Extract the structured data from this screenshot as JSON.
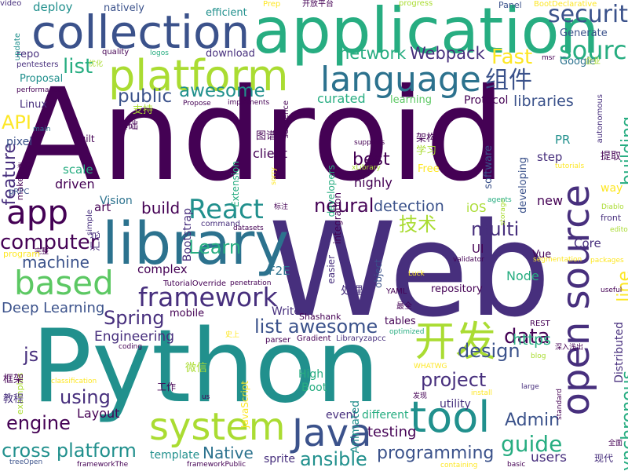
{
  "palette": {
    "dark_purple": "#440154",
    "indigo": "#472f7d",
    "blue": "#3b528b",
    "steel": "#2c728e",
    "teal": "#21908d",
    "green": "#27ad81",
    "lime": "#5cc863",
    "yellow_green": "#aadc32",
    "yellow": "#fde725"
  },
  "words": [
    {
      "text": "Android",
      "color": "#440154"
    },
    {
      "text": "Web",
      "color": "#472f7d"
    },
    {
      "text": "Python",
      "color": "#21908d"
    },
    {
      "text": "application",
      "color": "#27ad81"
    },
    {
      "text": "collection",
      "color": "#3b528b"
    },
    {
      "text": "platform",
      "color": "#aadc32"
    },
    {
      "text": "library",
      "color": "#2c728e"
    },
    {
      "text": "language",
      "color": "#2c728e"
    },
    {
      "text": "open source",
      "color": "#472f7d"
    },
    {
      "text": "system",
      "color": "#aadc32"
    },
    {
      "text": "tool",
      "color": "#21908d"
    },
    {
      "text": "Java",
      "color": "#3b528b"
    },
    {
      "text": "开发",
      "color": "#aadc32"
    },
    {
      "text": "app",
      "color": "#440154"
    },
    {
      "text": "React",
      "color": "#21908d"
    },
    {
      "text": "based",
      "color": "#5cc863"
    },
    {
      "text": "framework",
      "color": "#472f7d"
    },
    {
      "text": "source",
      "color": "#27ad81"
    },
    {
      "text": "security",
      "color": "#3b528b"
    },
    {
      "text": "组件",
      "color": "#3b528b"
    },
    {
      "text": "Fast",
      "color": "#fde725"
    },
    {
      "text": "list",
      "color": "#27ad81"
    },
    {
      "text": "awesome",
      "color": "#21908d"
    },
    {
      "text": "public",
      "color": "#3b528b"
    },
    {
      "text": "network",
      "color": "#27ad81"
    },
    {
      "text": "Webpack",
      "color": "#472f7d"
    },
    {
      "text": "API",
      "color": "#fde725"
    },
    {
      "text": "feature",
      "color": "#472f7d"
    },
    {
      "text": "computer",
      "color": "#440154"
    },
    {
      "text": "machine",
      "color": "#3b528b"
    },
    {
      "text": "Learn",
      "color": "#27ad81"
    },
    {
      "text": "Spring",
      "color": "#472f7d"
    },
    {
      "text": "neural",
      "color": "#440154"
    },
    {
      "text": "detection",
      "color": "#3b528b"
    },
    {
      "text": "技术",
      "color": "#aadc32"
    },
    {
      "text": "multi",
      "color": "#472f7d"
    },
    {
      "text": "build",
      "color": "#440154"
    },
    {
      "text": "building",
      "color": "#27ad81"
    },
    {
      "text": "libraries",
      "color": "#3b528b"
    },
    {
      "text": "line",
      "color": "#fde725"
    },
    {
      "text": "list awesome",
      "color": "#3b528b"
    },
    {
      "text": "data",
      "color": "#440154"
    },
    {
      "text": "project",
      "color": "#472f7d"
    },
    {
      "text": "design",
      "color": "#3b528b"
    },
    {
      "text": "engine",
      "color": "#440154"
    },
    {
      "text": "guide",
      "color": "#27ad81"
    },
    {
      "text": "using",
      "color": "#472f7d"
    },
    {
      "text": "Admin",
      "color": "#3b528b"
    },
    {
      "text": "https",
      "color": "#27ad81"
    },
    {
      "text": "asynchronous",
      "color": "#27ad81"
    },
    {
      "text": "cross platform",
      "color": "#21908d"
    },
    {
      "text": "programming",
      "color": "#3b528b"
    },
    {
      "text": "Native",
      "color": "#2c728e"
    },
    {
      "text": "ansible",
      "color": "#21908d"
    },
    {
      "text": "js",
      "color": "#472f7d"
    },
    {
      "text": "Deep Learning",
      "color": "#3b528b"
    },
    {
      "text": "Engineering",
      "color": "#472f7d"
    },
    {
      "text": "testing",
      "color": "#440154"
    },
    {
      "text": "users",
      "color": "#472f7d"
    },
    {
      "text": "Layout",
      "color": "#440154"
    },
    {
      "text": "best",
      "color": "#440154"
    },
    {
      "text": "highly",
      "color": "#440154"
    },
    {
      "text": "client",
      "color": "#440154"
    },
    {
      "text": "curated",
      "color": "#27ad81"
    },
    {
      "text": "learning",
      "color": "#5cc863"
    },
    {
      "text": "Protocol",
      "color": "#440154"
    },
    {
      "text": "Bootstrap",
      "color": "#472f7d"
    },
    {
      "text": "pixel",
      "color": "#3b528b"
    },
    {
      "text": "scale",
      "color": "#27ad81"
    },
    {
      "text": "driven",
      "color": "#440154"
    },
    {
      "text": "video",
      "color": "#472f7d"
    },
    {
      "text": "art",
      "color": "#440154"
    },
    {
      "text": "Vision",
      "color": "#2c728e"
    },
    {
      "text": "complex",
      "color": "#440154"
    },
    {
      "text": "F2E",
      "color": "#2c728e"
    },
    {
      "text": "Node",
      "color": "#27ad81"
    },
    {
      "text": "iOS",
      "color": "#aadc32"
    },
    {
      "text": "UI",
      "color": "#440154"
    },
    {
      "text": "Vue",
      "color": "#440154"
    },
    {
      "text": "new",
      "color": "#440154"
    },
    {
      "text": "Core",
      "color": "#472f7d"
    },
    {
      "text": "way",
      "color": "#fde725"
    },
    {
      "text": "step",
      "color": "#472f7d"
    },
    {
      "text": "PR",
      "color": "#21908d"
    },
    {
      "text": "Generate",
      "color": "#3b528b"
    },
    {
      "text": "deploy",
      "color": "#21908d"
    },
    {
      "text": "natively",
      "color": "#3b528b"
    },
    {
      "text": "efficient",
      "color": "#21908d"
    },
    {
      "text": "repo",
      "color": "#472f7d"
    },
    {
      "text": "download",
      "color": "#472f7d"
    },
    {
      "text": "Proposal",
      "color": "#21908d"
    },
    {
      "text": "Linux",
      "color": "#472f7d"
    },
    {
      "text": "Google",
      "color": "#2c728e"
    },
    {
      "text": "mobile",
      "color": "#440154"
    },
    {
      "text": "Write",
      "color": "#472f7d"
    },
    {
      "text": "Shashank",
      "color": "#440154"
    },
    {
      "text": "repository",
      "color": "#440154"
    },
    {
      "text": "High",
      "color": "#27ad81"
    },
    {
      "text": "Boot",
      "color": "#27ad81"
    },
    {
      "text": "event",
      "color": "#472f7d"
    },
    {
      "text": "different",
      "color": "#27ad81"
    },
    {
      "text": "utility",
      "color": "#472f7d"
    },
    {
      "text": "template",
      "color": "#21908d"
    },
    {
      "text": "sprite",
      "color": "#472f7d"
    },
    {
      "text": "tables",
      "color": "#440154"
    },
    {
      "text": "examples",
      "color": "#aadc32"
    },
    {
      "text": "框架",
      "color": "#440154"
    },
    {
      "text": "教程",
      "color": "#472f7d"
    },
    {
      "text": "工作",
      "color": "#440154"
    },
    {
      "text": "微信",
      "color": "#aadc32"
    },
    {
      "text": "JavaScript",
      "color": "#fde725"
    },
    {
      "text": "Animated",
      "color": "#21908d"
    },
    {
      "text": "software",
      "color": "#3b528b"
    },
    {
      "text": "developing",
      "color": "#3b528b"
    },
    {
      "text": "developers",
      "color": "#27ad81"
    },
    {
      "text": "integration",
      "color": "#440154"
    },
    {
      "text": "easier",
      "color": "#472f7d"
    },
    {
      "text": "object",
      "color": "#3b528b"
    },
    {
      "text": "Distributed",
      "color": "#472f7d"
    },
    {
      "text": "Extension",
      "color": "#27ad81"
    },
    {
      "text": "架构",
      "color": "#440154"
    },
    {
      "text": "学习",
      "color": "#aadc32"
    },
    {
      "text": "Free",
      "color": "#fde725"
    },
    {
      "text": "提取",
      "color": "#440154"
    },
    {
      "text": "图谱",
      "color": "#440154"
    },
    {
      "text": "处理",
      "color": "#472f7d"
    },
    {
      "text": "汇总",
      "color": "#472f7d"
    },
    {
      "text": "基础",
      "color": "#440154"
    },
    {
      "text": "支持",
      "color": "#aadc32"
    },
    {
      "text": "make",
      "color": "#440154"
    },
    {
      "text": "built",
      "color": "#440154"
    },
    {
      "text": "simple",
      "color": "#472f7d"
    },
    {
      "text": "现代",
      "color": "#472f7d"
    },
    {
      "text": "update",
      "color": "#21908d"
    },
    {
      "text": "quality",
      "color": "#440154"
    },
    {
      "text": "Prep",
      "color": "#fde725"
    },
    {
      "text": "开放平台",
      "color": "#440154"
    },
    {
      "text": "progress",
      "color": "#aadc32"
    },
    {
      "text": "Panel",
      "color": "#3b528b"
    },
    {
      "text": "BootDeclarative",
      "color": "#fde725"
    },
    {
      "text": "msr",
      "color": "#440154"
    },
    {
      "text": "企业",
      "color": "#aadc32"
    },
    {
      "text": "pentesters",
      "color": "#472f7d"
    },
    {
      "text": "优化",
      "color": "#aadc32"
    },
    {
      "text": "logos",
      "color": "#27ad81"
    },
    {
      "text": "performance",
      "color": "#440154"
    },
    {
      "text": "Propose",
      "color": "#440154"
    },
    {
      "text": "implements",
      "color": "#440154"
    },
    {
      "text": "sequence",
      "color": "#440154"
    },
    {
      "text": "main",
      "color": "#2c728e"
    },
    {
      "text": "supports",
      "color": "#440154"
    },
    {
      "text": "autonomous",
      "color": "#472f7d"
    },
    {
      "text": "Diablo",
      "color": "#aadc32"
    },
    {
      "text": "editor",
      "color": "#aadc32"
    },
    {
      "text": "front",
      "color": "#472f7d"
    },
    {
      "text": "tutorials",
      "color": "#fde725"
    },
    {
      "text": "看板",
      "color": "#440154"
    },
    {
      "text": "xLibrary",
      "color": "#aadc32"
    },
    {
      "text": "sorry",
      "color": "#fde725"
    },
    {
      "text": "gRPC",
      "color": "#3b528b"
    },
    {
      "text": "标注",
      "color": "#440154"
    },
    {
      "text": "storage",
      "color": "#aadc32"
    },
    {
      "text": "agents",
      "color": "#27ad81"
    },
    {
      "text": "完整",
      "color": "#440154"
    },
    {
      "text": "command",
      "color": "#472f7d"
    },
    {
      "text": "datasets",
      "color": "#440154"
    },
    {
      "text": "validator",
      "color": "#440154"
    },
    {
      "text": "segmentation",
      "color": "#fde725"
    },
    {
      "text": "packages",
      "color": "#fde725"
    },
    {
      "text": "program",
      "color": "#fde725"
    },
    {
      "text": "TutorialOverride",
      "color": "#440154"
    },
    {
      "text": "penetration",
      "color": "#440154"
    },
    {
      "text": "useful",
      "color": "#440154"
    },
    {
      "text": "Luck",
      "color": "#fde725"
    },
    {
      "text": "YAML",
      "color": "#440154"
    },
    {
      "text": "最全",
      "color": "#440154"
    },
    {
      "text": "optimized",
      "color": "#27ad81"
    },
    {
      "text": "REST",
      "color": "#440154"
    },
    {
      "text": "史上",
      "color": "#fde725"
    },
    {
      "text": "coding",
      "color": "#440154"
    },
    {
      "text": "parser",
      "color": "#440154"
    },
    {
      "text": "Gradient",
      "color": "#440154"
    },
    {
      "text": "Libraryzapcc",
      "color": "#472f7d"
    },
    {
      "text": "深入浅出",
      "color": "#440154"
    },
    {
      "text": "blog",
      "color": "#aadc32"
    },
    {
      "text": "WHATWG",
      "color": "#fde725"
    },
    {
      "text": "classification",
      "color": "#fde725"
    },
    {
      "text": "发现",
      "color": "#440154"
    },
    {
      "text": "large",
      "color": "#472f7d"
    },
    {
      "text": "install",
      "color": "#fde725"
    },
    {
      "text": "standard",
      "color": "#440154"
    },
    {
      "text": "全面",
      "color": "#440154"
    },
    {
      "text": "us",
      "color": "#440154"
    },
    {
      "text": "treeOpen",
      "color": "#3b528b"
    },
    {
      "text": "frameworkThe",
      "color": "#440154"
    },
    {
      "text": "frameworkPublic",
      "color": "#440154"
    },
    {
      "text": "containing",
      "color": "#fde725"
    },
    {
      "text": "basic",
      "color": "#440154"
    }
  ]
}
